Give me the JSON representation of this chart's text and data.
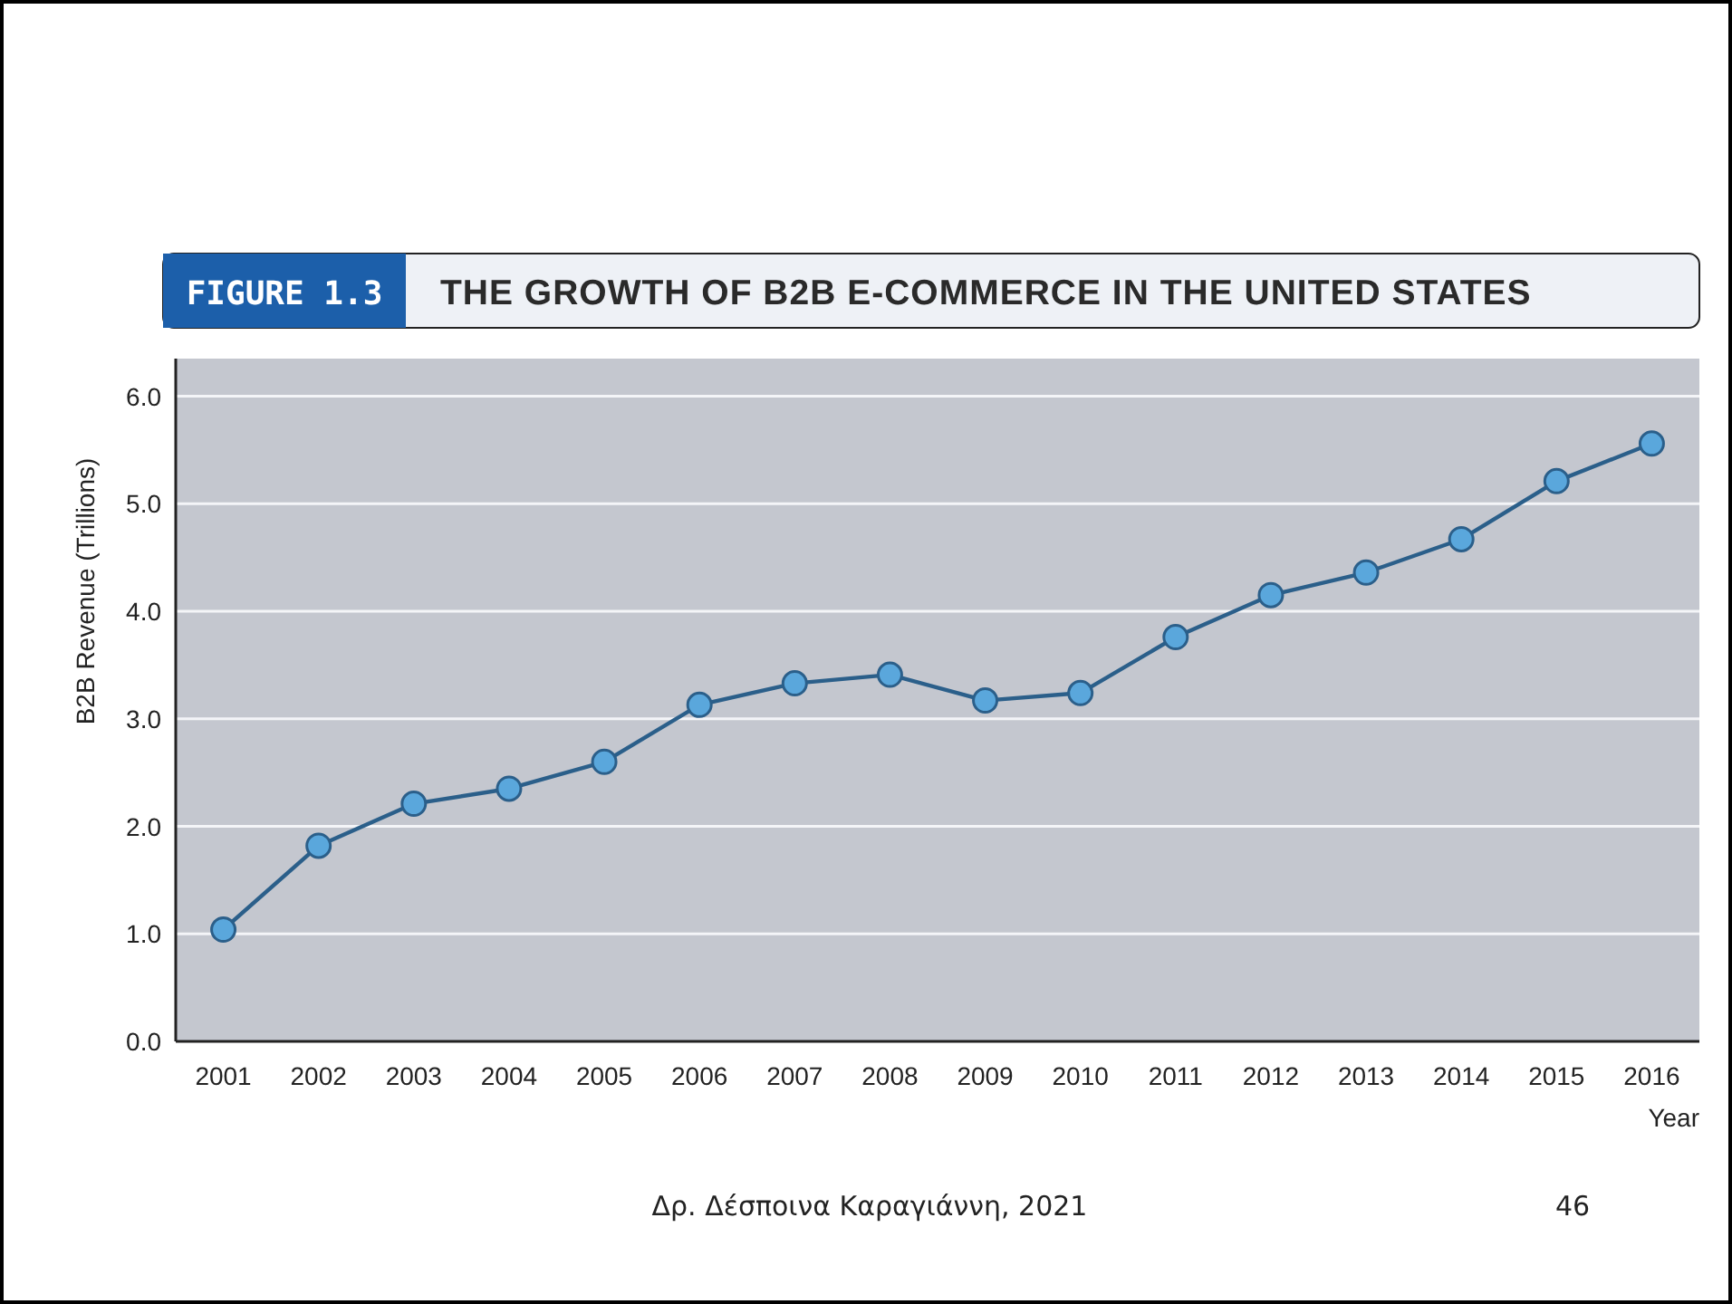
{
  "chart_data": {
    "type": "line",
    "title": "THE GROWTH OF B2B E-COMMERCE IN THE UNITED STATES",
    "subtitle": "FIGURE 1.3",
    "xlabel": "Year",
    "ylabel": "B2B Revenue (Trillions)",
    "categories": [
      "2001",
      "2002",
      "2003",
      "2004",
      "2005",
      "2006",
      "2007",
      "2008",
      "2009",
      "2010",
      "2011",
      "2012",
      "2013",
      "2014",
      "2015",
      "2016"
    ],
    "series": [
      {
        "color": "#2b5f8a",
        "values": [
          1.04,
          1.82,
          2.21,
          2.35,
          2.6,
          3.13,
          3.33,
          3.41,
          3.17,
          3.24,
          3.76,
          4.15,
          4.36,
          4.67,
          5.21,
          5.56
        ]
      }
    ],
    "ylim": [
      0,
      6.35
    ],
    "yticks": [
      {
        "value": 0,
        "label": "0.0"
      },
      {
        "value": 1,
        "label": "1.0"
      },
      {
        "value": 2,
        "label": "2.0"
      },
      {
        "value": 3,
        "label": "3.0"
      },
      {
        "value": 4,
        "label": "4.0"
      },
      {
        "value": 5,
        "label": "5.0"
      },
      {
        "value": 6,
        "label": "6.0"
      }
    ],
    "grid": "y",
    "marker": "circle",
    "line_style": "solid",
    "annotations": [
      "Δρ. Δέσποινα Καραγιάννη, 2021",
      "46"
    ]
  }
}
